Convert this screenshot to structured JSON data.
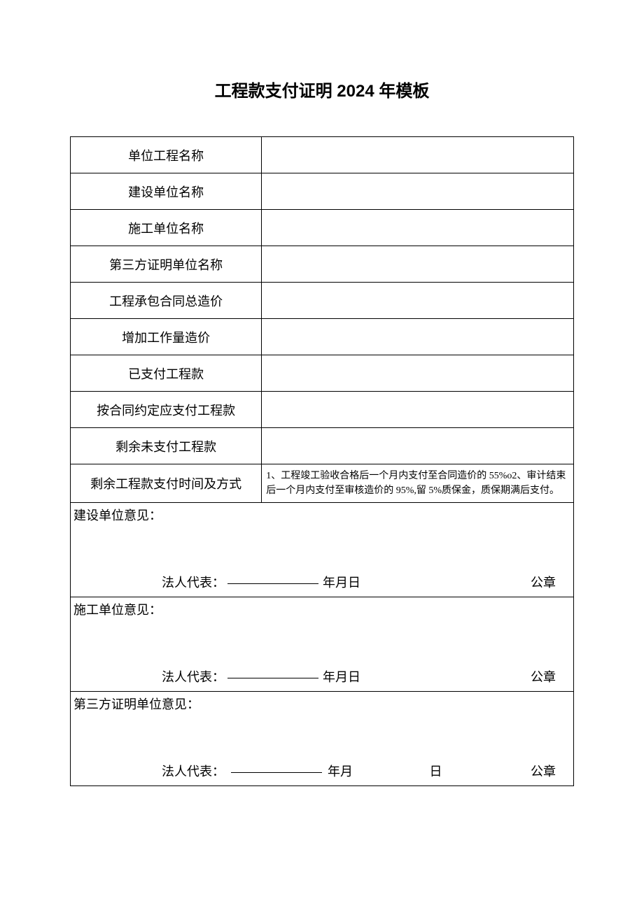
{
  "title": "工程款支付证明 2024 年模板",
  "rows": {
    "project_name": {
      "label": "单位工程名称",
      "value": ""
    },
    "construction_unit": {
      "label": "建设单位名称",
      "value": ""
    },
    "contractor_unit": {
      "label": "施工单位名称",
      "value": ""
    },
    "third_party_unit": {
      "label": "第三方证明单位名称",
      "value": ""
    },
    "contract_total": {
      "label": "工程承包合同总造价",
      "value": ""
    },
    "additional_work": {
      "label": "增加工作量造价",
      "value": ""
    },
    "paid_amount": {
      "label": "已支付工程款",
      "value": ""
    },
    "should_pay": {
      "label": "按合同约定应支付工程款",
      "value": ""
    },
    "remaining_unpaid": {
      "label": "剩余未支付工程款",
      "value": ""
    },
    "payment_method": {
      "label": "剩余工程款支付时间及方式",
      "value": "1、工程竣工验收合格后一个月内支付至合同造价的 55%o2、审计结束后一个月内支付至审核造价的 95%,留 5%质保金，质保期满后支付。"
    }
  },
  "opinions": {
    "construction": {
      "title": "建设单位意见：",
      "rep_label": "法人代表：",
      "date": "年月日",
      "seal": "公章"
    },
    "contractor": {
      "title": "施工单位意见：",
      "rep_label": "法人代表：",
      "date": "年月日",
      "seal": "公章"
    },
    "third_party": {
      "title": "第三方证明单位意见：",
      "rep_label": "法人代表：",
      "ym": "年月",
      "day": "日",
      "seal": "公章"
    }
  },
  "style": {
    "background": "#ffffff",
    "border_color": "#000000",
    "title_fontsize": 24,
    "label_fontsize": 18,
    "detail_fontsize": 14
  }
}
